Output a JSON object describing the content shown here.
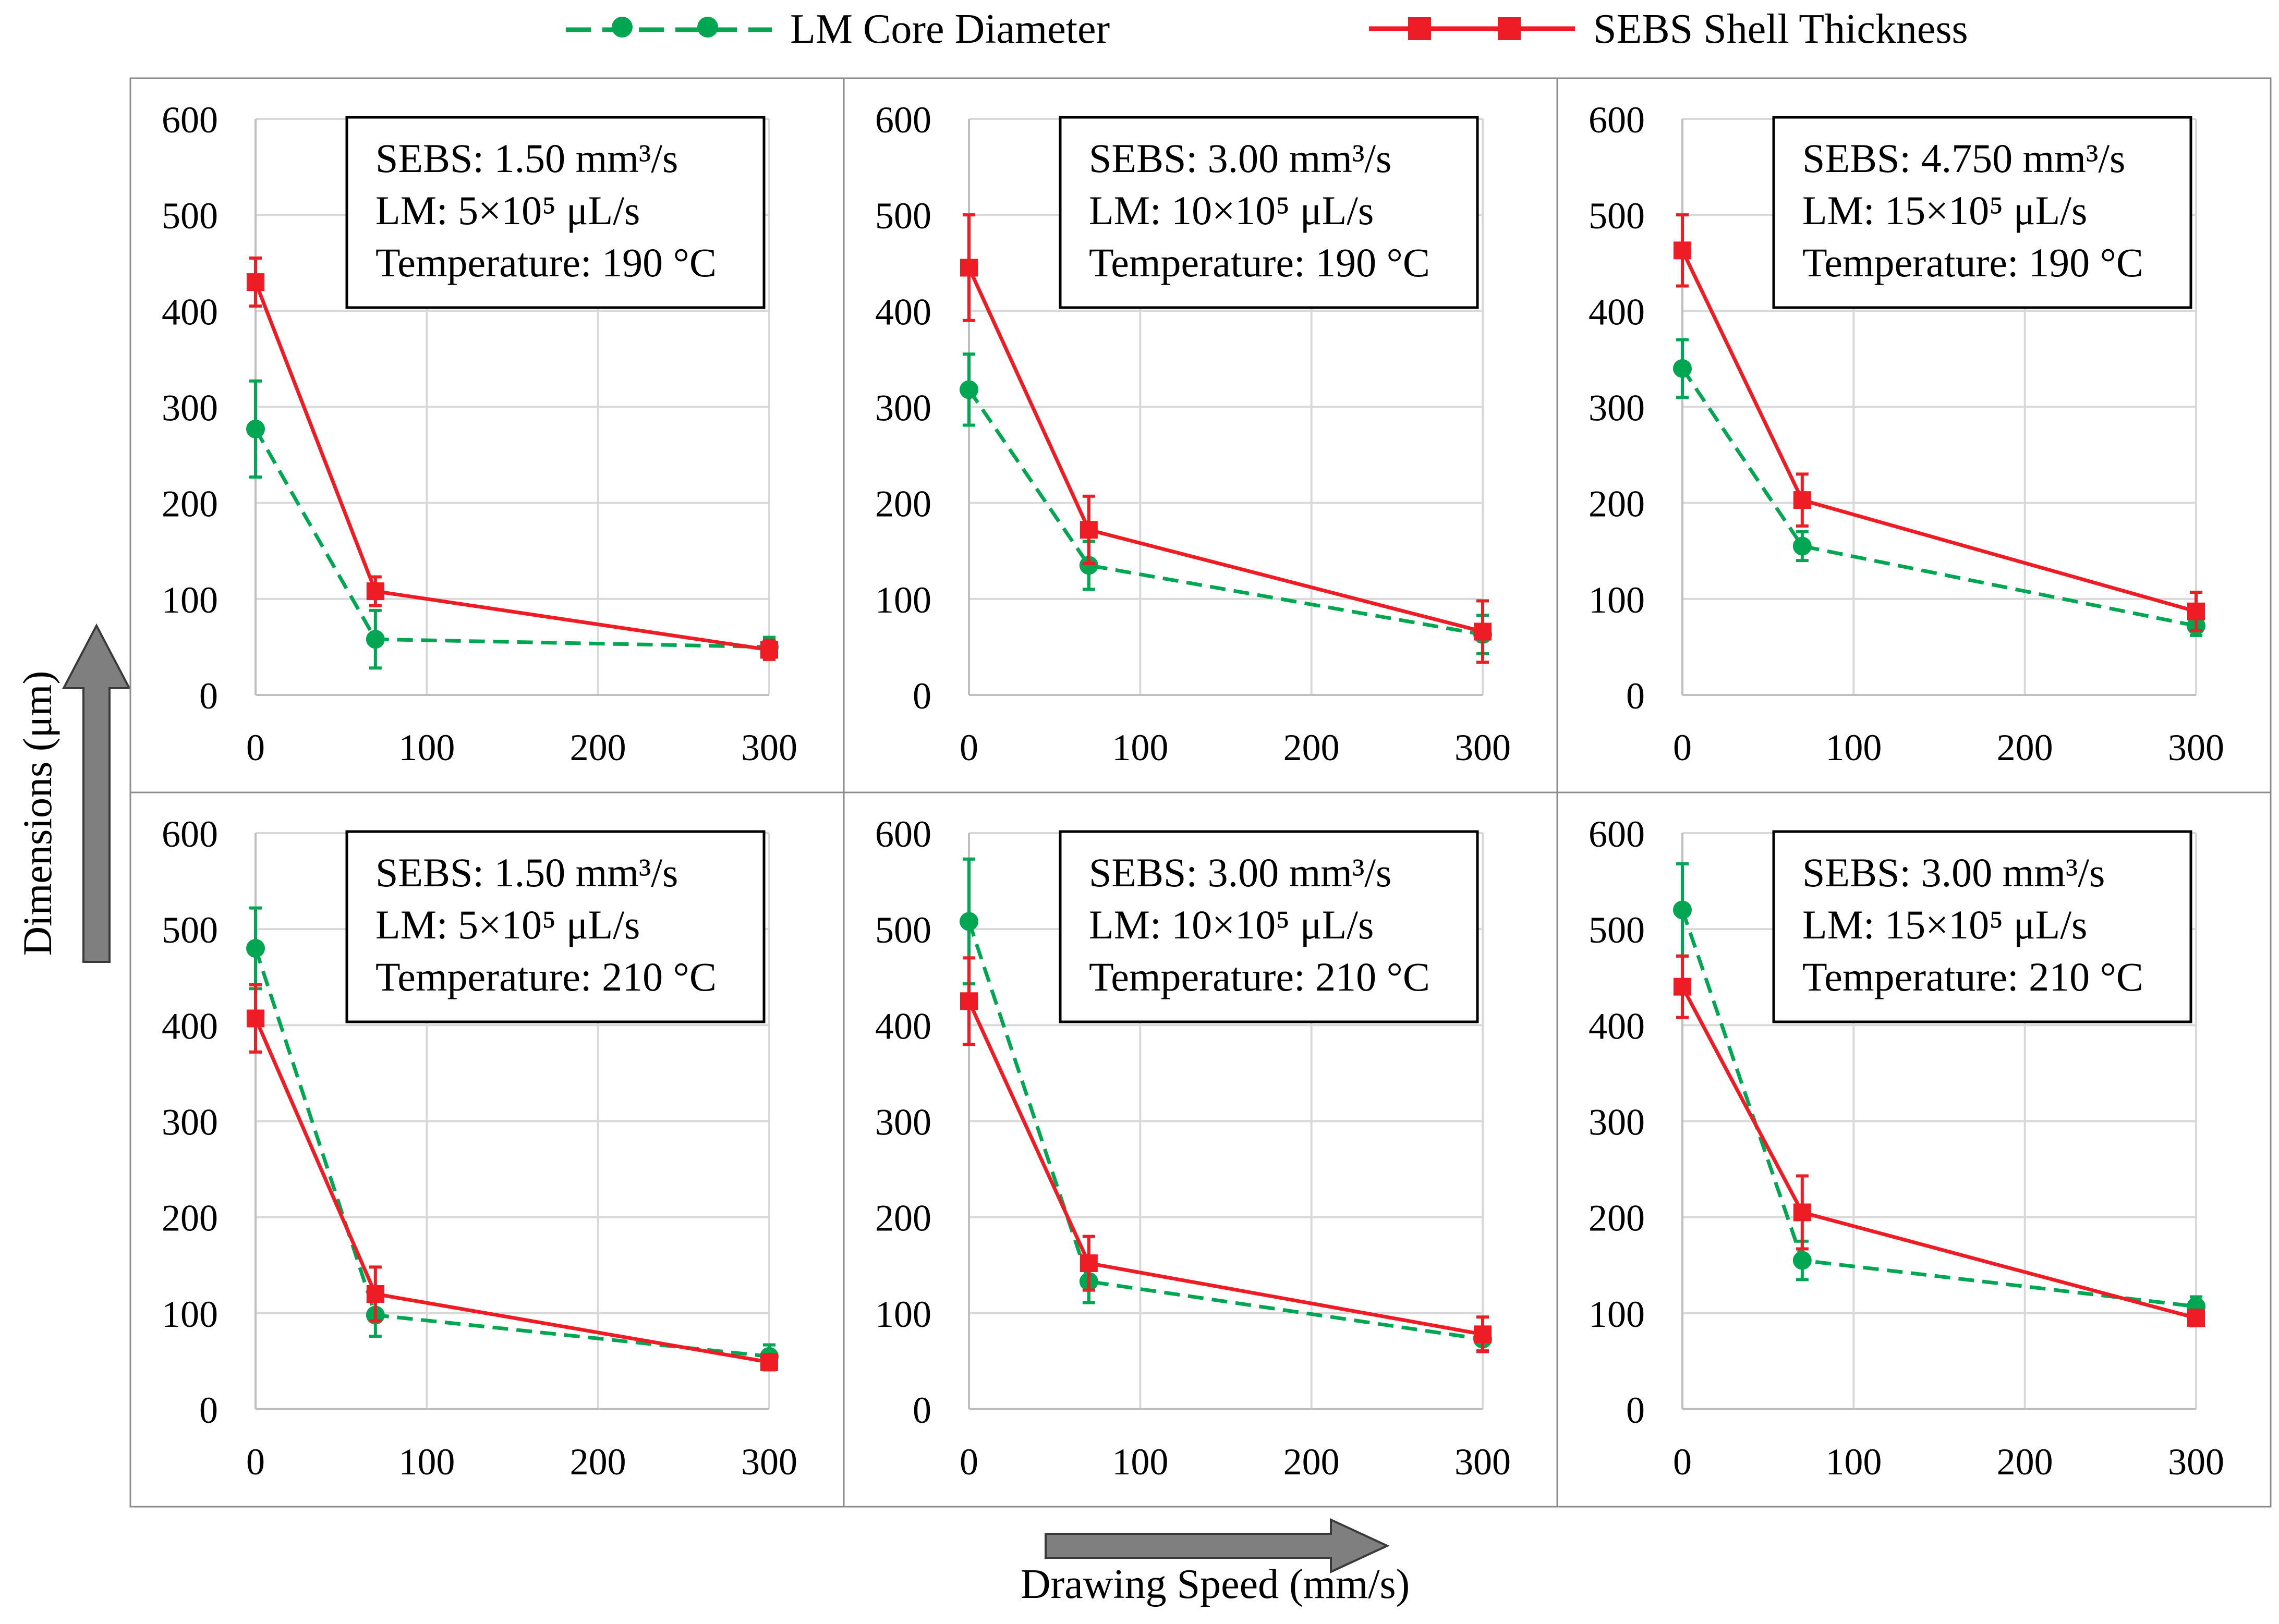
{
  "legend": {
    "core_label": "LM Core Diameter",
    "shell_label": "SEBS Shell Thickness"
  },
  "axes": {
    "y_label": "Dimensions (μm)",
    "x_label": "Drawing Speed (mm/s)"
  },
  "colors": {
    "core": "#00a651",
    "shell": "#ee1c25",
    "grid": "#d9d9d9",
    "arrow": "#7f7f7f"
  },
  "chart_data": [
    {
      "type": "line",
      "title": "",
      "xlabel": "Drawing Speed (mm/s)",
      "ylabel": "Dimensions (μm)",
      "xlim": [
        0,
        300
      ],
      "ylim": [
        0,
        600
      ],
      "xticks": [
        "0",
        "100",
        "200",
        "300"
      ],
      "yticks": [
        "0",
        "100",
        "200",
        "300",
        "400",
        "500",
        "600"
      ],
      "annotation": [
        "SEBS: 1.50 mm³/s",
        "LM: 5×10⁵ μL/s",
        "Temperature: 190 °C"
      ],
      "x": [
        0,
        70,
        300
      ],
      "series": [
        {
          "name": "LM Core Diameter",
          "values": [
            277,
            58,
            50
          ],
          "errors": [
            50,
            30,
            10
          ]
        },
        {
          "name": "SEBS Shell Thickness",
          "values": [
            430,
            108,
            47
          ],
          "errors": [
            25,
            15,
            10
          ]
        }
      ]
    },
    {
      "type": "line",
      "title": "",
      "xlabel": "Drawing Speed (mm/s)",
      "ylabel": "Dimensions (μm)",
      "xlim": [
        0,
        300
      ],
      "ylim": [
        0,
        600
      ],
      "xticks": [
        "0",
        "100",
        "200",
        "300"
      ],
      "yticks": [
        "0",
        "100",
        "200",
        "300",
        "400",
        "500",
        "600"
      ],
      "annotation": [
        "SEBS: 3.00 mm³/s",
        "LM: 10×10⁵ μL/s",
        "Temperature: 190 °C"
      ],
      "x": [
        0,
        70,
        300
      ],
      "series": [
        {
          "name": "LM Core Diameter",
          "values": [
            318,
            135,
            63
          ],
          "errors": [
            37,
            25,
            20
          ]
        },
        {
          "name": "SEBS Shell Thickness",
          "values": [
            445,
            172,
            66
          ],
          "errors": [
            55,
            35,
            32
          ]
        }
      ]
    },
    {
      "type": "line",
      "title": "",
      "xlabel": "Drawing Speed (mm/s)",
      "ylabel": "Dimensions (μm)",
      "xlim": [
        0,
        300
      ],
      "ylim": [
        0,
        600
      ],
      "xticks": [
        "0",
        "100",
        "200",
        "300"
      ],
      "yticks": [
        "0",
        "100",
        "200",
        "300",
        "400",
        "500",
        "600"
      ],
      "annotation": [
        "SEBS: 4.750 mm³/s",
        "LM: 15×10⁵ μL/s",
        "Temperature: 190 °C"
      ],
      "x": [
        0,
        70,
        300
      ],
      "series": [
        {
          "name": "LM Core Diameter",
          "values": [
            340,
            155,
            72
          ],
          "errors": [
            30,
            15,
            10
          ]
        },
        {
          "name": "SEBS Shell Thickness",
          "values": [
            463,
            203,
            87
          ],
          "errors": [
            37,
            27,
            20
          ]
        }
      ]
    },
    {
      "type": "line",
      "title": "",
      "xlabel": "Drawing Speed (mm/s)",
      "ylabel": "Dimensions (μm)",
      "xlim": [
        0,
        300
      ],
      "ylim": [
        0,
        600
      ],
      "xticks": [
        "0",
        "100",
        "200",
        "300"
      ],
      "yticks": [
        "0",
        "100",
        "200",
        "300",
        "400",
        "500",
        "600"
      ],
      "annotation": [
        "SEBS: 1.50 mm³/s",
        "LM: 5×10⁵ μL/s",
        "Temperature: 210 °C"
      ],
      "x": [
        0,
        70,
        300
      ],
      "series": [
        {
          "name": "LM Core Diameter",
          "values": [
            480,
            98,
            55
          ],
          "errors": [
            42,
            22,
            12
          ]
        },
        {
          "name": "SEBS Shell Thickness",
          "values": [
            407,
            120,
            49
          ],
          "errors": [
            35,
            28,
            8
          ]
        }
      ]
    },
    {
      "type": "line",
      "title": "",
      "xlabel": "Drawing Speed (mm/s)",
      "ylabel": "Dimensions (μm)",
      "xlim": [
        0,
        300
      ],
      "ylim": [
        0,
        600
      ],
      "xticks": [
        "0",
        "100",
        "200",
        "300"
      ],
      "yticks": [
        "0",
        "100",
        "200",
        "300",
        "400",
        "500",
        "600"
      ],
      "annotation": [
        "SEBS: 3.00 mm³/s",
        "LM: 10×10⁵ μL/s",
        "Temperature: 210 °C"
      ],
      "x": [
        0,
        70,
        300
      ],
      "series": [
        {
          "name": "LM Core Diameter",
          "values": [
            508,
            133,
            73
          ],
          "errors": [
            65,
            22,
            12
          ]
        },
        {
          "name": "SEBS Shell Thickness",
          "values": [
            425,
            152,
            78
          ],
          "errors": [
            45,
            28,
            18
          ]
        }
      ]
    },
    {
      "type": "line",
      "title": "",
      "xlabel": "Drawing Speed (mm/s)",
      "ylabel": "Dimensions (μm)",
      "xlim": [
        0,
        300
      ],
      "ylim": [
        0,
        600
      ],
      "xticks": [
        "0",
        "100",
        "200",
        "300"
      ],
      "yticks": [
        "0",
        "100",
        "200",
        "300",
        "400",
        "500",
        "600"
      ],
      "annotation": [
        "SEBS: 3.00 mm³/s",
        "LM: 15×10⁵ μL/s",
        "Temperature: 210 °C"
      ],
      "x": [
        0,
        70,
        300
      ],
      "series": [
        {
          "name": "LM Core Diameter",
          "values": [
            520,
            155,
            107
          ],
          "errors": [
            48,
            20,
            10
          ]
        },
        {
          "name": "SEBS Shell Thickness",
          "values": [
            440,
            205,
            95
          ],
          "errors": [
            32,
            38,
            8
          ]
        }
      ]
    }
  ]
}
